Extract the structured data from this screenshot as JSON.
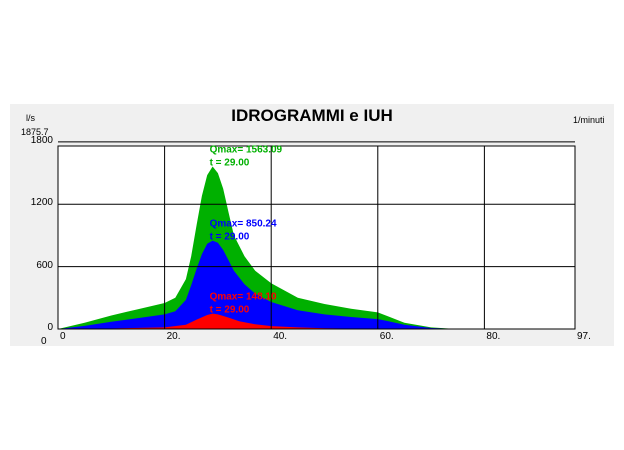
{
  "chart_data": {
    "type": "area",
    "title": "IDROGRAMMI e IUH",
    "ylabel": "l/s",
    "xlabel": "1/minuti",
    "ymax_label": "1875.7",
    "xmax_label": "97.",
    "ylim": [
      0,
      1875.7
    ],
    "xlim": [
      0,
      97
    ],
    "yticks": [
      {
        "v": 0,
        "label": "0"
      },
      {
        "v": 600,
        "label": "600"
      },
      {
        "v": 1200,
        "label": "1200"
      },
      {
        "v": 1800,
        "label": "1800"
      }
    ],
    "xticks": [
      {
        "v": 0,
        "label": "0"
      },
      {
        "v": 20,
        "label": "20."
      },
      {
        "v": 40,
        "label": "40."
      },
      {
        "v": 60,
        "label": "60."
      },
      {
        "v": 80,
        "label": "80."
      }
    ],
    "grid": true,
    "series": [
      {
        "color": "#00b000",
        "x": [
          0,
          5,
          10,
          15,
          20,
          22,
          24,
          25,
          26,
          27,
          28,
          29,
          30,
          31,
          32,
          33,
          35,
          37,
          40,
          45,
          50,
          55,
          60,
          62,
          65,
          70,
          74,
          76
        ],
        "y": [
          0,
          60,
          130,
          190,
          250,
          300,
          480,
          700,
          1000,
          1280,
          1480,
          1563.09,
          1500,
          1350,
          1120,
          900,
          700,
          560,
          440,
          300,
          240,
          195,
          160,
          120,
          60,
          15,
          3,
          0
        ],
        "annotation": {
          "qmax": "Qmax= 1563.09",
          "t": "t = 29.00"
        }
      },
      {
        "color": "#0000ff",
        "x": [
          0,
          5,
          10,
          15,
          20,
          22,
          24,
          25,
          26,
          27,
          28,
          29,
          30,
          31,
          32,
          33,
          35,
          37,
          40,
          45,
          50,
          55,
          60,
          62,
          65,
          70,
          74,
          76
        ],
        "y": [
          0,
          30,
          70,
          105,
          140,
          170,
          280,
          420,
          580,
          720,
          820,
          850.24,
          830,
          760,
          660,
          560,
          430,
          340,
          260,
          180,
          140,
          115,
          95,
          75,
          40,
          10,
          2,
          0
        ],
        "annotation": {
          "qmax": "Qmax= 850.24",
          "t": "t = 29.00"
        }
      },
      {
        "color": "#ff0000",
        "x": [
          0,
          10,
          20,
          24,
          26,
          28,
          29,
          30,
          32,
          34,
          37,
          40,
          45,
          50,
          55,
          60,
          65,
          70
        ],
        "y": [
          0,
          5,
          15,
          40,
          90,
          135,
          148,
          140,
          110,
          75,
          45,
          28,
          15,
          8,
          4,
          2,
          1,
          0
        ],
        "annotation": {
          "qmax": "Qmax= 148.10",
          "t": "t = 29.00"
        }
      }
    ]
  }
}
